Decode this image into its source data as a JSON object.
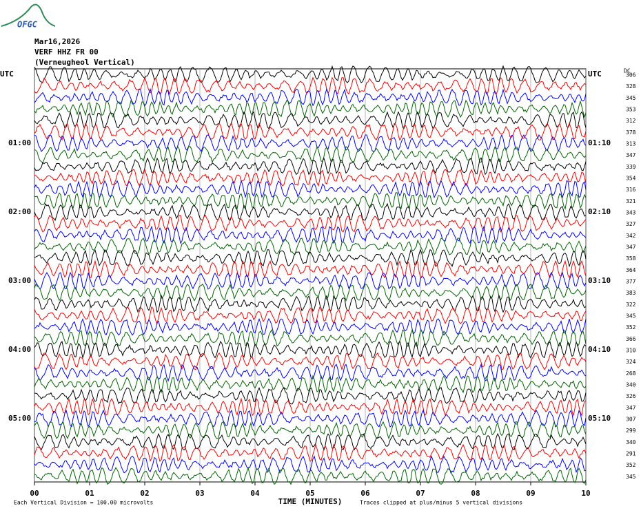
{
  "logo": "OFGC",
  "header": {
    "date": "Mar16,2026",
    "station": "VERF HHZ FR 00",
    "location": "(Verneugheol Vertical)"
  },
  "left_labels": [
    "UTC",
    "01:00",
    "02:00",
    "03:00",
    "04:00",
    "05:00"
  ],
  "right_labels": [
    "UTC",
    "01:10",
    "02:10",
    "03:10",
    "04:10",
    "05:10"
  ],
  "dc_header": "DC",
  "dc_values": [
    306,
    328,
    345,
    353,
    312,
    378,
    313,
    347,
    339,
    354,
    316,
    321,
    343,
    327,
    342,
    347,
    358,
    364,
    377,
    383,
    322,
    345,
    352,
    366,
    310,
    324,
    268,
    340,
    326,
    347,
    307,
    299,
    340,
    291,
    352,
    345
  ],
  "trace_colors": [
    "#000000",
    "#ff0000",
    "#0000ff",
    "#006400"
  ],
  "x_axis": {
    "label": "TIME (MINUTES)",
    "xlim": [
      0,
      10
    ],
    "ticks": [
      {
        "value": 0,
        "label": "00"
      },
      {
        "value": 1,
        "label": "01"
      },
      {
        "value": 2,
        "label": "02"
      },
      {
        "value": 3,
        "label": "03"
      },
      {
        "value": 4,
        "label": "04"
      },
      {
        "value": 5,
        "label": "05"
      },
      {
        "value": 6,
        "label": "06"
      },
      {
        "value": 7,
        "label": "07"
      },
      {
        "value": 8,
        "label": "08"
      },
      {
        "value": 9,
        "label": "09"
      },
      {
        "value": 10,
        "label": "10"
      }
    ]
  },
  "footer": {
    "scale": "Each Vertical Division =  100.00 microvolts",
    "clip": "Traces clipped at plus/minus 5 vertical divisions"
  }
}
